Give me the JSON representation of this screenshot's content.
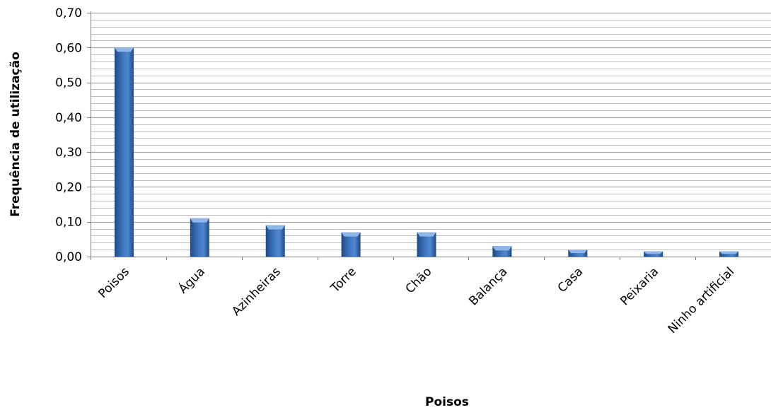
{
  "chart_data": {
    "type": "bar",
    "title": "",
    "xlabel": "Poisos",
    "ylabel": "Frequência de utilização",
    "ylim": [
      0,
      0.7
    ],
    "major_ticks": [
      "0,00",
      "0,10",
      "0,20",
      "0,30",
      "0,40",
      "0,50",
      "0,60",
      "0,70"
    ],
    "minor_step": 0.02,
    "grid": true,
    "legend": "none",
    "categories": [
      "Poisos",
      "Água",
      "Azinheiras",
      "Torre",
      "Chão",
      "Balança",
      "Casa",
      "Peixaria",
      "Ninho artificial"
    ],
    "values": [
      0.6,
      0.11,
      0.09,
      0.07,
      0.07,
      0.03,
      0.02,
      0.015,
      0.015
    ],
    "bar_color": "#3a6fb5",
    "bar_dark": "#1f4a85",
    "bar_light": "#8fb6e8",
    "gridline_color": "#a6a6a6"
  }
}
